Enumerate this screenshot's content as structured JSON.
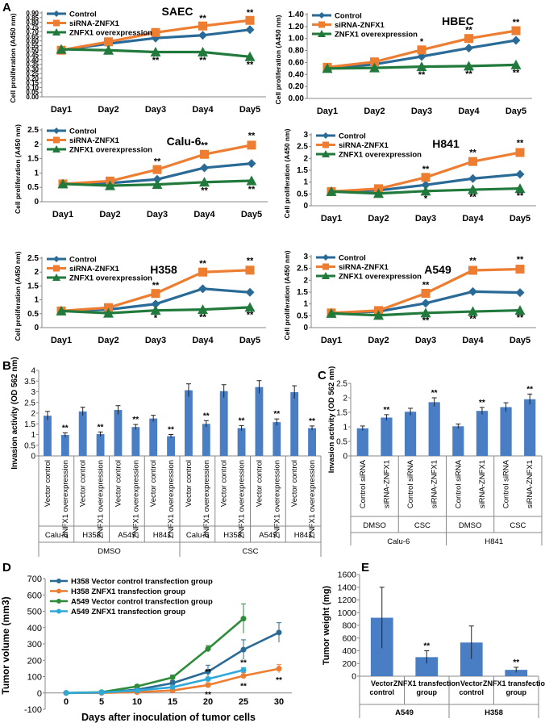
{
  "figure": {
    "panel_letters": [
      "A",
      "B",
      "C",
      "D",
      "E"
    ],
    "colors": {
      "control": "#2a6a96",
      "sirna": "#ed7d31",
      "overexp": "#217a3c",
      "bar": "#4a7ec4",
      "a549vec": "#2e8b3a",
      "a549znfx1": "#2ea9d9"
    }
  },
  "chart_data": [
    {
      "id": "A-SAEC",
      "type": "line",
      "title": "SAEC",
      "ylabel": "Cell proliferation (A450 nm)",
      "ylim": [
        0,
        0.9
      ],
      "yticks": [
        "0.00",
        "0.05",
        "0.10",
        "0.15",
        "0.20",
        "0.25",
        "0.30",
        "0.35",
        "0.40",
        "0.45",
        "0.50",
        "0.55",
        "0.60",
        "0.65",
        "0.70",
        "0.75",
        "0.80",
        "0.85",
        "0.90"
      ],
      "categories": [
        "Day1",
        "Day2",
        "Day3",
        "Day4",
        "Day5"
      ],
      "series": [
        {
          "name": "Control",
          "values": [
            0.5,
            0.57,
            0.63,
            0.66,
            0.72
          ],
          "err": [
            0.02,
            0.02,
            0.02,
            0.02,
            0.02
          ]
        },
        {
          "name": "siRNA-ZNFX1",
          "values": [
            0.5,
            0.59,
            0.69,
            0.76,
            0.82
          ],
          "err": [
            0.02,
            0.02,
            0.02,
            0.02,
            0.02
          ],
          "stars": [
            "",
            "",
            "",
            "**",
            "**"
          ]
        },
        {
          "name": "ZNFX1 overexpression",
          "values": [
            0.51,
            0.5,
            0.48,
            0.48,
            0.43
          ],
          "err": [
            0.02,
            0.02,
            0.02,
            0.02,
            0.02
          ],
          "stars": [
            "",
            "",
            "**",
            "**",
            "**"
          ]
        }
      ]
    },
    {
      "id": "A-HBEC",
      "type": "line",
      "title": "HBEC",
      "ylabel": "Cell proliferation (A450 nm)",
      "ylim": [
        0,
        1.4
      ],
      "yticks": [
        "0.00",
        "0.20",
        "0.40",
        "0.60",
        "0.80",
        "1.00",
        "1.20",
        "1.40"
      ],
      "categories": [
        "Day1",
        "Day2",
        "Day3",
        "Day4",
        "Day5"
      ],
      "series": [
        {
          "name": "Control",
          "values": [
            0.5,
            0.57,
            0.7,
            0.84,
            0.97
          ],
          "err": [
            0.03,
            0.03,
            0.03,
            0.03,
            0.03
          ]
        },
        {
          "name": "siRNA-ZNFX1",
          "values": [
            0.52,
            0.61,
            0.81,
            1.0,
            1.13
          ],
          "err": [
            0.03,
            0.03,
            0.04,
            0.04,
            0.04
          ],
          "stars": [
            "",
            "",
            "*",
            "**",
            "**"
          ]
        },
        {
          "name": "ZNFX1 overexpression",
          "values": [
            0.5,
            0.51,
            0.53,
            0.54,
            0.56
          ],
          "err": [
            0.03,
            0.03,
            0.03,
            0.03,
            0.03
          ],
          "stars": [
            "",
            "",
            "**",
            "**",
            "**"
          ]
        }
      ]
    },
    {
      "id": "A-Calu6",
      "type": "line",
      "title": "Calu-6",
      "ylabel": "Cell proliferation (A450 nm)",
      "ylim": [
        0,
        2.5
      ],
      "yticks": [
        "0",
        "0.5",
        "1",
        "1.5",
        "2",
        "2.5"
      ],
      "categories": [
        "Day1",
        "Day2",
        "Day3",
        "Day4",
        "Day5"
      ],
      "series": [
        {
          "name": "Control",
          "values": [
            0.62,
            0.65,
            0.78,
            1.18,
            1.33
          ],
          "err": [
            0.03,
            0.05,
            0.05,
            0.08,
            0.1
          ]
        },
        {
          "name": "siRNA-ZNFX1",
          "values": [
            0.62,
            0.72,
            1.12,
            1.65,
            1.97
          ],
          "err": [
            0.03,
            0.05,
            0.08,
            0.1,
            0.12
          ],
          "stars": [
            "",
            "",
            "**",
            "**",
            "**"
          ]
        },
        {
          "name": "ZNFX1 overexpression",
          "values": [
            0.62,
            0.56,
            0.6,
            0.68,
            0.73
          ],
          "err": [
            0.03,
            0.04,
            0.05,
            0.08,
            0.08
          ],
          "stars": [
            "",
            "",
            "",
            "**",
            "**"
          ]
        }
      ]
    },
    {
      "id": "A-H841",
      "type": "line",
      "title": "H841",
      "ylabel": "Cell proliferation (A450 nm)",
      "ylim": [
        0,
        3
      ],
      "yticks": [
        "0",
        "0.5",
        "1",
        "1.5",
        "2",
        "2.5",
        "3"
      ],
      "categories": [
        "Day1",
        "Day2",
        "Day3",
        "Day4",
        "Day5"
      ],
      "series": [
        {
          "name": "Control",
          "values": [
            0.6,
            0.65,
            0.88,
            1.15,
            1.33
          ],
          "err": [
            0.03,
            0.05,
            0.05,
            0.08,
            0.1
          ]
        },
        {
          "name": "siRNA-ZNFX1",
          "values": [
            0.6,
            0.72,
            1.2,
            1.87,
            2.25
          ],
          "err": [
            0.03,
            0.05,
            0.1,
            0.12,
            0.15
          ],
          "stars": [
            "",
            "",
            "**",
            "**",
            "**"
          ]
        },
        {
          "name": "ZNFX1 overexpression",
          "values": [
            0.6,
            0.52,
            0.62,
            0.68,
            0.73
          ],
          "err": [
            0.03,
            0.04,
            0.05,
            0.05,
            0.05
          ],
          "stars": [
            "",
            "",
            "*",
            "**",
            "**"
          ]
        }
      ]
    },
    {
      "id": "A-H358",
      "type": "line",
      "title": "H358",
      "ylabel": "Cell proliferation (A450 nm)",
      "ylim": [
        0,
        2.5
      ],
      "yticks": [
        "0",
        "0.5",
        "1",
        "1.5",
        "2",
        "2.5"
      ],
      "categories": [
        "Day1",
        "Day2",
        "Day3",
        "Day4",
        "Day5"
      ],
      "series": [
        {
          "name": "Control",
          "values": [
            0.6,
            0.65,
            0.85,
            1.4,
            1.27
          ],
          "err": [
            0.03,
            0.05,
            0.05,
            0.08,
            0.08
          ]
        },
        {
          "name": "siRNA-ZNFX1",
          "values": [
            0.6,
            0.72,
            1.23,
            2.0,
            2.07
          ],
          "err": [
            0.03,
            0.05,
            0.08,
            0.1,
            0.12
          ],
          "stars": [
            "",
            "",
            "**",
            "**",
            "**"
          ]
        },
        {
          "name": "ZNFX1 overexpression",
          "values": [
            0.6,
            0.52,
            0.62,
            0.65,
            0.73
          ],
          "err": [
            0.03,
            0.04,
            0.05,
            0.05,
            0.05
          ],
          "stars": [
            "",
            "",
            "*",
            "**",
            "**"
          ]
        }
      ]
    },
    {
      "id": "A-A549",
      "type": "line",
      "title": "A549",
      "ylabel": "Cell proliferation (A450 nm)",
      "ylim": [
        0,
        3
      ],
      "yticks": [
        "0",
        "0.5",
        "1",
        "1.5",
        "2",
        "2.5",
        "3"
      ],
      "categories": [
        "Day1",
        "Day2",
        "Day3",
        "Day4",
        "Day5"
      ],
      "series": [
        {
          "name": "Control",
          "values": [
            0.62,
            0.68,
            1.03,
            1.52,
            1.48
          ],
          "err": [
            0.03,
            0.05,
            0.05,
            0.1,
            0.08
          ]
        },
        {
          "name": "siRNA-ZNFX1",
          "values": [
            0.62,
            0.72,
            1.45,
            2.42,
            2.47
          ],
          "err": [
            0.03,
            0.05,
            0.1,
            0.15,
            0.15
          ],
          "stars": [
            "",
            "",
            "**",
            "**",
            "**"
          ]
        },
        {
          "name": "ZNFX1 overexpression",
          "values": [
            0.6,
            0.52,
            0.62,
            0.68,
            0.73
          ],
          "err": [
            0.03,
            0.04,
            0.05,
            0.05,
            0.05
          ],
          "stars": [
            "",
            "",
            "**",
            "**",
            "**"
          ]
        }
      ]
    },
    {
      "id": "B",
      "type": "bar",
      "ylabel": "Invasion activity (OD 562 nm)",
      "ylim": [
        0,
        4
      ],
      "yticks": [
        "0",
        "0.5",
        "1",
        "1.5",
        "2",
        "2.5",
        "3",
        "3.5",
        "4"
      ],
      "categories": [
        "Vector control",
        "ZNFX1 overexpression",
        "Vector control",
        "ZNFX1 overexpression",
        "Vector control",
        "ZNFX1 overexpression",
        "Vector control",
        "ZNFX1 overexpression",
        "Vector control",
        "ZNFX1 overexpression",
        "Vector control",
        "ZNFX1 overexpression",
        "Vector control",
        "ZNFX1 overexpression",
        "Vector control",
        "ZNFX1 overexpression"
      ],
      "values": [
        1.88,
        0.98,
        2.08,
        1.02,
        2.15,
        1.35,
        1.75,
        0.92,
        3.07,
        1.5,
        3.03,
        1.3,
        3.22,
        1.58,
        2.98,
        1.3
      ],
      "err": [
        0.2,
        0.1,
        0.2,
        0.1,
        0.2,
        0.12,
        0.15,
        0.08,
        0.3,
        0.15,
        0.3,
        0.12,
        0.3,
        0.15,
        0.3,
        0.1
      ],
      "stars": [
        "",
        "**",
        "",
        "**",
        "",
        "**",
        "",
        "**",
        "",
        "**",
        "",
        "**",
        "",
        "**",
        "",
        "**"
      ],
      "cell_lines": [
        "Calu-6",
        "H358",
        "A549",
        "H841",
        "Calu-6",
        "H358",
        "A549",
        "H841"
      ],
      "treatments": [
        "DMSO",
        "CSC"
      ]
    },
    {
      "id": "C",
      "type": "bar",
      "ylabel": "Invasion activity (OD 562 nm)",
      "ylim": [
        0,
        2.5
      ],
      "yticks": [
        "0",
        "0.5",
        "1",
        "1.5",
        "2",
        "2.5"
      ],
      "categories": [
        "Control siRNA",
        "siRNA-ZNFX1",
        "Control siRNA",
        "siRNA-ZNFX1",
        "Control siRNA",
        "siRNA-ZNFX1",
        "Control siRNA",
        "siRNA-ZNFX1"
      ],
      "values": [
        0.95,
        1.32,
        1.52,
        1.85,
        1.02,
        1.55,
        1.68,
        1.95
      ],
      "err": [
        0.08,
        0.1,
        0.12,
        0.15,
        0.08,
        0.12,
        0.15,
        0.18
      ],
      "stars": [
        "",
        "**",
        "",
        "**",
        "",
        "**",
        "",
        "**"
      ],
      "treatments": [
        "DMSO",
        "CSC",
        "DMSO",
        "CSC"
      ],
      "cell_lines": [
        "Calu-6",
        "H841"
      ]
    },
    {
      "id": "D",
      "type": "line",
      "ylabel": "Tumor volume (mm3)",
      "xlabel": "Days after inoculation of tumor cells",
      "ylim": [
        -100,
        700
      ],
      "yticks": [
        "-100",
        "0",
        "100",
        "200",
        "300",
        "400",
        "500",
        "600",
        "700"
      ],
      "xlim": [
        0,
        30
      ],
      "xticks": [
        "0",
        "5",
        "10",
        "15",
        "20",
        "25",
        "30"
      ],
      "x": [
        0,
        5,
        10,
        15,
        20,
        25,
        30
      ],
      "series": [
        {
          "name": "H358 Vector control transfection group",
          "x": [
            0,
            5,
            10,
            15,
            20,
            25,
            30
          ],
          "values": [
            0,
            3,
            20,
            60,
            130,
            265,
            370
          ],
          "err": [
            0,
            3,
            8,
            15,
            40,
            60,
            60
          ]
        },
        {
          "name": "H358 ZNFX1 transfection group",
          "x": [
            0,
            5,
            10,
            15,
            20,
            25,
            30
          ],
          "values": [
            0,
            0,
            5,
            15,
            48,
            105,
            148
          ],
          "err": [
            0,
            2,
            5,
            8,
            15,
            20,
            25
          ],
          "stars": [
            "",
            "",
            "",
            "",
            "**",
            "**",
            "**"
          ]
        },
        {
          "name": "A549 Vector control transfection group",
          "x": [
            0,
            5,
            10,
            15,
            20,
            25
          ],
          "values": [
            0,
            5,
            40,
            95,
            270,
            455
          ],
          "err": [
            0,
            3,
            8,
            15,
            20,
            90
          ]
        },
        {
          "name": "A549 ZNFX1 transfection group",
          "x": [
            0,
            5,
            10,
            15,
            20,
            25
          ],
          "values": [
            0,
            3,
            15,
            35,
            85,
            140
          ],
          "err": [
            0,
            2,
            5,
            8,
            12,
            15
          ],
          "stars": [
            "",
            "",
            "",
            "",
            "**",
            "**"
          ]
        }
      ]
    },
    {
      "id": "E",
      "type": "bar",
      "ylabel": "Tumor weight (mg)",
      "ylim": [
        0,
        1600
      ],
      "yticks": [
        "0",
        "200",
        "400",
        "600",
        "800",
        "1000",
        "1200",
        "1400",
        "1600"
      ],
      "categories": [
        "Vector control",
        "ZNFX1 transfection group",
        "Vector control",
        "ZNFX1 transfection group"
      ],
      "values": [
        920,
        300,
        530,
        100
      ],
      "err": [
        480,
        100,
        260,
        40
      ],
      "stars": [
        "",
        "**",
        "",
        "**"
      ],
      "groups": [
        "A549",
        "H358"
      ]
    }
  ]
}
